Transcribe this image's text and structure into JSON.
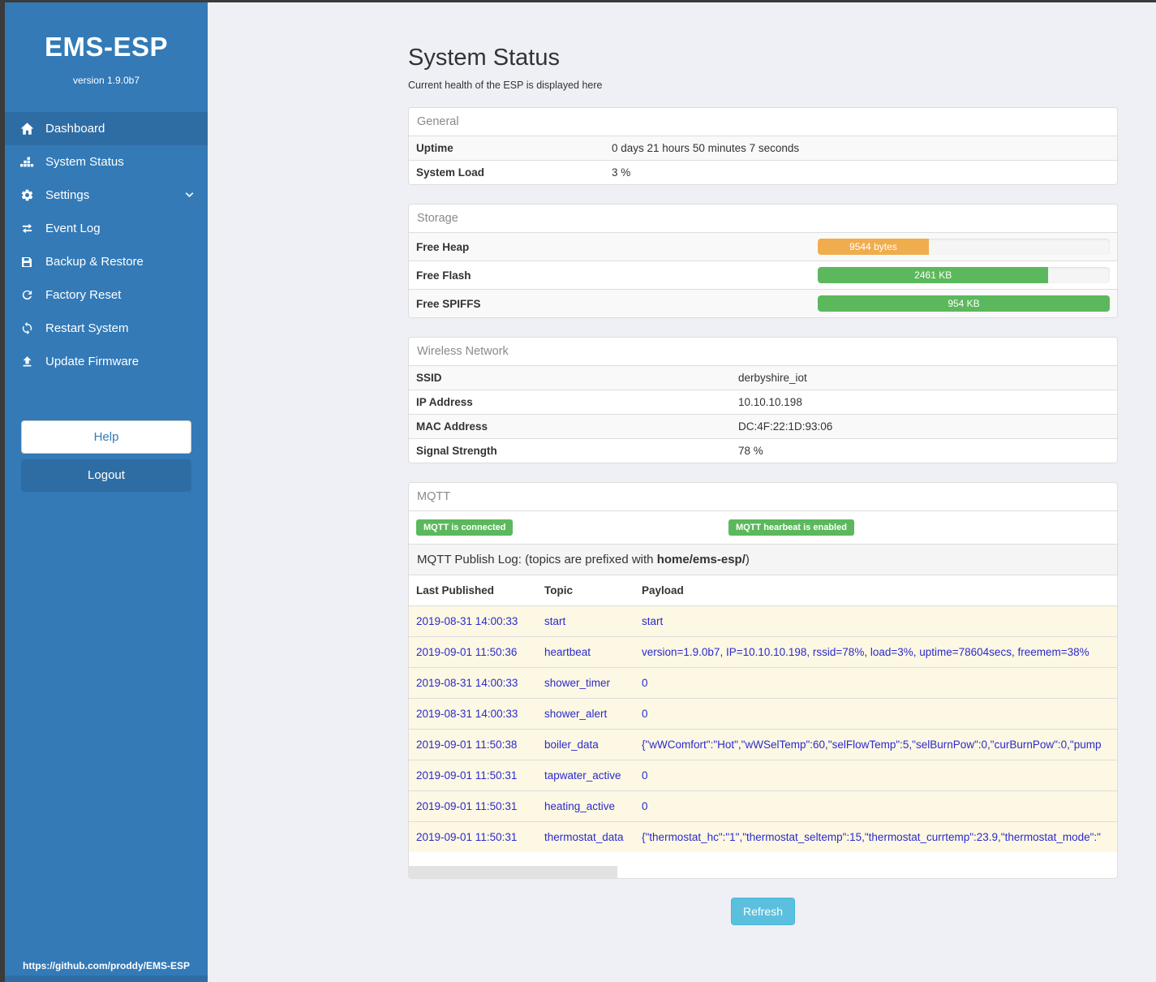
{
  "sidebar": {
    "brand": "EMS-ESP",
    "version": "version 1.9.0b7",
    "items": [
      {
        "label": "Dashboard",
        "icon": "home-icon",
        "active": true
      },
      {
        "label": "System Status",
        "icon": "system-status-icon",
        "active": false
      },
      {
        "label": "Settings",
        "icon": "gear-icon",
        "active": false,
        "chevron": "chevron-down-icon"
      },
      {
        "label": "Event Log",
        "icon": "exchange-icon",
        "active": false
      },
      {
        "label": "Backup & Restore",
        "icon": "save-icon",
        "active": false
      },
      {
        "label": "Factory Reset",
        "icon": "redo-icon",
        "active": false
      },
      {
        "label": "Restart System",
        "icon": "sync-icon",
        "active": false
      },
      {
        "label": "Update Firmware",
        "icon": "upload-icon",
        "active": false
      }
    ],
    "help_label": "Help",
    "logout_label": "Logout",
    "footer_link": "https://github.com/proddy/EMS-ESP"
  },
  "header": {
    "title": "System Status",
    "subtitle": "Current health of the ESP is displayed here"
  },
  "panels": {
    "general": {
      "title": "General",
      "rows": [
        {
          "label": "Uptime",
          "value": "0 days 21 hours 50 minutes 7 seconds"
        },
        {
          "label": "System Load",
          "value": "3 %"
        }
      ]
    },
    "storage": {
      "title": "Storage",
      "rows": [
        {
          "label": "Free Heap",
          "bar_label": "9544 bytes",
          "percent": 38,
          "color": "#f0ad4e"
        },
        {
          "label": "Free Flash",
          "bar_label": "2461 KB",
          "percent": 79,
          "color": "#5cb85c"
        },
        {
          "label": "Free SPIFFS",
          "bar_label": "954 KB",
          "percent": 100,
          "color": "#5cb85c"
        }
      ]
    },
    "wireless": {
      "title": "Wireless Network",
      "rows": [
        {
          "label": "SSID",
          "value": "derbyshire_iot"
        },
        {
          "label": "IP Address",
          "value": "10.10.10.198"
        },
        {
          "label": "MAC Address",
          "value": "DC:4F:22:1D:93:06"
        },
        {
          "label": "Signal Strength",
          "value": "78 %"
        }
      ]
    },
    "mqtt": {
      "title": "MQTT",
      "badges": [
        "MQTT is connected",
        "MQTT hearbeat is enabled"
      ],
      "publish_log": {
        "prefix": "MQTT Publish Log: (topics are prefixed with ",
        "bold": "home/ems-esp/",
        "suffix": ")"
      },
      "table": {
        "headers": [
          "Last Published",
          "Topic",
          "Payload"
        ],
        "rows": [
          {
            "time": "2019-08-31 14:00:33",
            "topic": "start",
            "payload": "start"
          },
          {
            "time": "2019-09-01 11:50:36",
            "topic": "heartbeat",
            "payload": "version=1.9.0b7, IP=10.10.10.198, rssid=78%, load=3%, uptime=78604secs, freemem=38%"
          },
          {
            "time": "2019-08-31 14:00:33",
            "topic": "shower_timer",
            "payload": "0"
          },
          {
            "time": "2019-08-31 14:00:33",
            "topic": "shower_alert",
            "payload": "0"
          },
          {
            "time": "2019-09-01 11:50:38",
            "topic": "boiler_data",
            "payload": "{\"wWComfort\":\"Hot\",\"wWSelTemp\":60,\"selFlowTemp\":5,\"selBurnPow\":0,\"curBurnPow\":0,\"pump"
          },
          {
            "time": "2019-09-01 11:50:31",
            "topic": "tapwater_active",
            "payload": "0"
          },
          {
            "time": "2019-09-01 11:50:31",
            "topic": "heating_active",
            "payload": "0"
          },
          {
            "time": "2019-09-01 11:50:31",
            "topic": "thermostat_data",
            "payload": "{\"thermostat_hc\":\"1\",\"thermostat_seltemp\":15,\"thermostat_currtemp\":23.9,\"thermostat_mode\":\""
          }
        ]
      }
    }
  },
  "refresh_label": "Refresh",
  "colors": {
    "sidebar_blue": "#337ab7",
    "active_item_blue": "#2e6da4",
    "success_green": "#5cb85c",
    "warning_orange": "#f0ad4e",
    "info_cyan": "#5bc0de",
    "log_text_blue": "#2a2acd",
    "log_row_cream": "#fdf8e3"
  }
}
